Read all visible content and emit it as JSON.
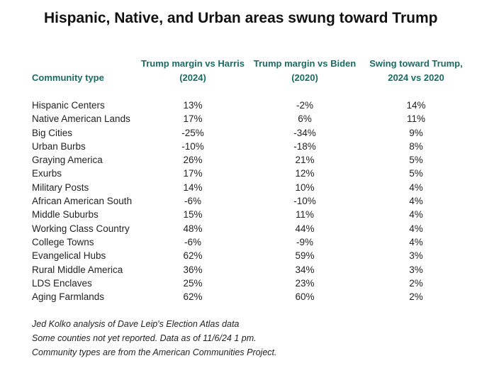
{
  "title": "Hispanic, Native, and Urban areas swung toward Trump",
  "headers": {
    "community": "Community type",
    "col1_line1": "Trump margin vs Harris",
    "col1_line2": "(2024)",
    "col2_line1": "Trump margin vs Biden",
    "col2_line2": "(2020)",
    "col3_line1": "Swing toward Trump,",
    "col3_line2": "2024 vs 2020"
  },
  "chart_data": {
    "type": "table",
    "columns": [
      "Community type",
      "Trump margin vs Harris (2024)",
      "Trump margin vs Biden (2020)",
      "Swing toward Trump, 2024 vs 2020"
    ],
    "rows": [
      {
        "name": "Hispanic Centers",
        "v2024": "13%",
        "v2020": "-2%",
        "swing": "14%"
      },
      {
        "name": "Native American Lands",
        "v2024": "17%",
        "v2020": "6%",
        "swing": "11%"
      },
      {
        "name": "Big Cities",
        "v2024": "-25%",
        "v2020": "-34%",
        "swing": "9%"
      },
      {
        "name": "Urban Burbs",
        "v2024": "-10%",
        "v2020": "-18%",
        "swing": "8%"
      },
      {
        "name": "Graying America",
        "v2024": "26%",
        "v2020": "21%",
        "swing": "5%"
      },
      {
        "name": "Exurbs",
        "v2024": "17%",
        "v2020": "12%",
        "swing": "5%"
      },
      {
        "name": "Military Posts",
        "v2024": "14%",
        "v2020": "10%",
        "swing": "4%"
      },
      {
        "name": "African American South",
        "v2024": "-6%",
        "v2020": "-10%",
        "swing": "4%"
      },
      {
        "name": "Middle Suburbs",
        "v2024": "15%",
        "v2020": "11%",
        "swing": "4%"
      },
      {
        "name": "Working Class Country",
        "v2024": "48%",
        "v2020": "44%",
        "swing": "4%"
      },
      {
        "name": "College Towns",
        "v2024": "-6%",
        "v2020": "-9%",
        "swing": "4%"
      },
      {
        "name": "Evangelical Hubs",
        "v2024": "62%",
        "v2020": "59%",
        "swing": "3%"
      },
      {
        "name": "Rural Middle America",
        "v2024": "36%",
        "v2020": "34%",
        "swing": "3%"
      },
      {
        "name": "LDS Enclaves",
        "v2024": "25%",
        "v2020": "23%",
        "swing": "2%"
      },
      {
        "name": "Aging Farmlands",
        "v2024": "62%",
        "v2020": "60%",
        "swing": "2%"
      }
    ]
  },
  "notes": [
    "Jed Kolko analysis of Dave Leip's Election Atlas data",
    "Some counties not yet reported. Data as of 11/6/24 1 pm.",
    "Community types are from the American Communities Project."
  ],
  "colors": {
    "header": "#1b6b63",
    "title": "#111111",
    "text": "#222222"
  }
}
